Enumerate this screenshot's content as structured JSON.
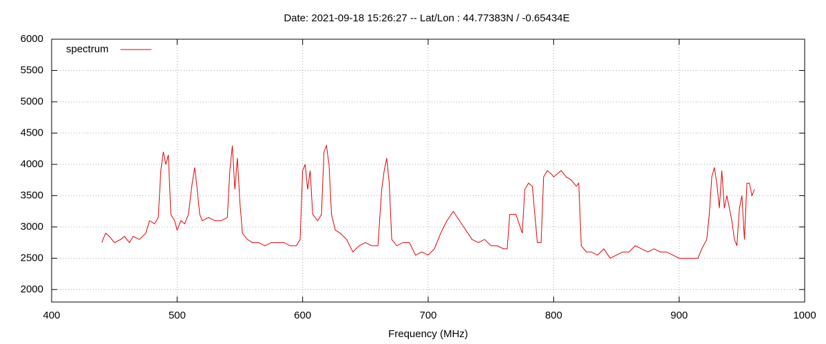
{
  "chart_data": {
    "type": "line",
    "title": "Date: 2021-09-18 15:26:27  --  Lat/Lon : 44.77383N / -0.65434E",
    "x_label": "Frequency (MHz)",
    "xlim": [
      400,
      1000
    ],
    "xticks": [
      400,
      500,
      600,
      700,
      800,
      900,
      1000
    ],
    "ylim": [
      1800,
      6000
    ],
    "yticks": [
      2000,
      2500,
      3000,
      3500,
      4000,
      4500,
      5000,
      5500,
      6000
    ],
    "grid": true,
    "legend": "top-left",
    "series": [
      {
        "name": "spectrum",
        "color": "#e00000",
        "x": [
          440,
          443,
          446,
          450,
          455,
          458,
          462,
          465,
          470,
          475,
          478,
          482,
          485,
          487,
          489,
          491,
          493,
          495,
          498,
          500,
          503,
          506,
          509,
          512,
          514,
          516,
          518,
          520,
          525,
          530,
          535,
          540,
          542,
          544,
          546,
          548,
          550,
          552,
          556,
          560,
          565,
          570,
          575,
          580,
          585,
          590,
          595,
          598,
          600,
          602,
          604,
          606,
          608,
          612,
          615,
          617,
          619,
          621,
          623,
          626,
          630,
          635,
          640,
          645,
          650,
          655,
          660,
          663,
          665,
          667,
          669,
          671,
          675,
          680,
          685,
          690,
          695,
          700,
          705,
          710,
          715,
          720,
          725,
          730,
          735,
          740,
          745,
          750,
          755,
          760,
          763,
          765,
          770,
          775,
          777,
          780,
          783,
          785,
          787,
          790,
          792,
          795,
          798,
          800,
          803,
          806,
          810,
          814,
          818,
          820,
          822,
          826,
          830,
          835,
          840,
          845,
          850,
          855,
          860,
          865,
          870,
          875,
          880,
          885,
          890,
          895,
          900,
          905,
          910,
          915,
          918,
          922,
          924,
          926,
          928,
          930,
          932,
          934,
          936,
          938,
          940,
          942,
          944,
          946,
          948,
          950,
          952,
          954,
          956,
          958,
          960
        ],
        "values": [
          2750,
          2900,
          2850,
          2750,
          2800,
          2850,
          2750,
          2850,
          2800,
          2900,
          3100,
          3050,
          3150,
          3900,
          4200,
          4000,
          4150,
          3200,
          3100,
          2950,
          3100,
          3050,
          3200,
          3700,
          3950,
          3600,
          3200,
          3100,
          3150,
          3100,
          3100,
          3150,
          3900,
          4300,
          3600,
          4100,
          3400,
          2900,
          2800,
          2750,
          2750,
          2700,
          2750,
          2750,
          2750,
          2700,
          2700,
          2800,
          3900,
          4000,
          3600,
          3900,
          3200,
          3100,
          3200,
          4200,
          4300,
          4000,
          3200,
          2950,
          2900,
          2800,
          2600,
          2700,
          2750,
          2700,
          2700,
          3600,
          3900,
          4100,
          3700,
          2800,
          2700,
          2750,
          2750,
          2550,
          2600,
          2550,
          2650,
          2900,
          3100,
          3250,
          3100,
          2950,
          2800,
          2750,
          2800,
          2700,
          2700,
          2650,
          2650,
          3200,
          3200,
          2900,
          3600,
          3700,
          3650,
          3200,
          2750,
          2750,
          3800,
          3900,
          3850,
          3800,
          3850,
          3900,
          3800,
          3750,
          3650,
          3700,
          2700,
          2600,
          2600,
          2550,
          2650,
          2500,
          2550,
          2600,
          2600,
          2700,
          2650,
          2600,
          2650,
          2600,
          2600,
          2550,
          2500,
          2500,
          2500,
          2500,
          2650,
          2800,
          3200,
          3800,
          3950,
          3700,
          3300,
          3900,
          3300,
          3500,
          3300,
          3100,
          2800,
          2700,
          3300,
          3500,
          2800,
          3700,
          3700,
          3500,
          3600
        ]
      }
    ]
  }
}
